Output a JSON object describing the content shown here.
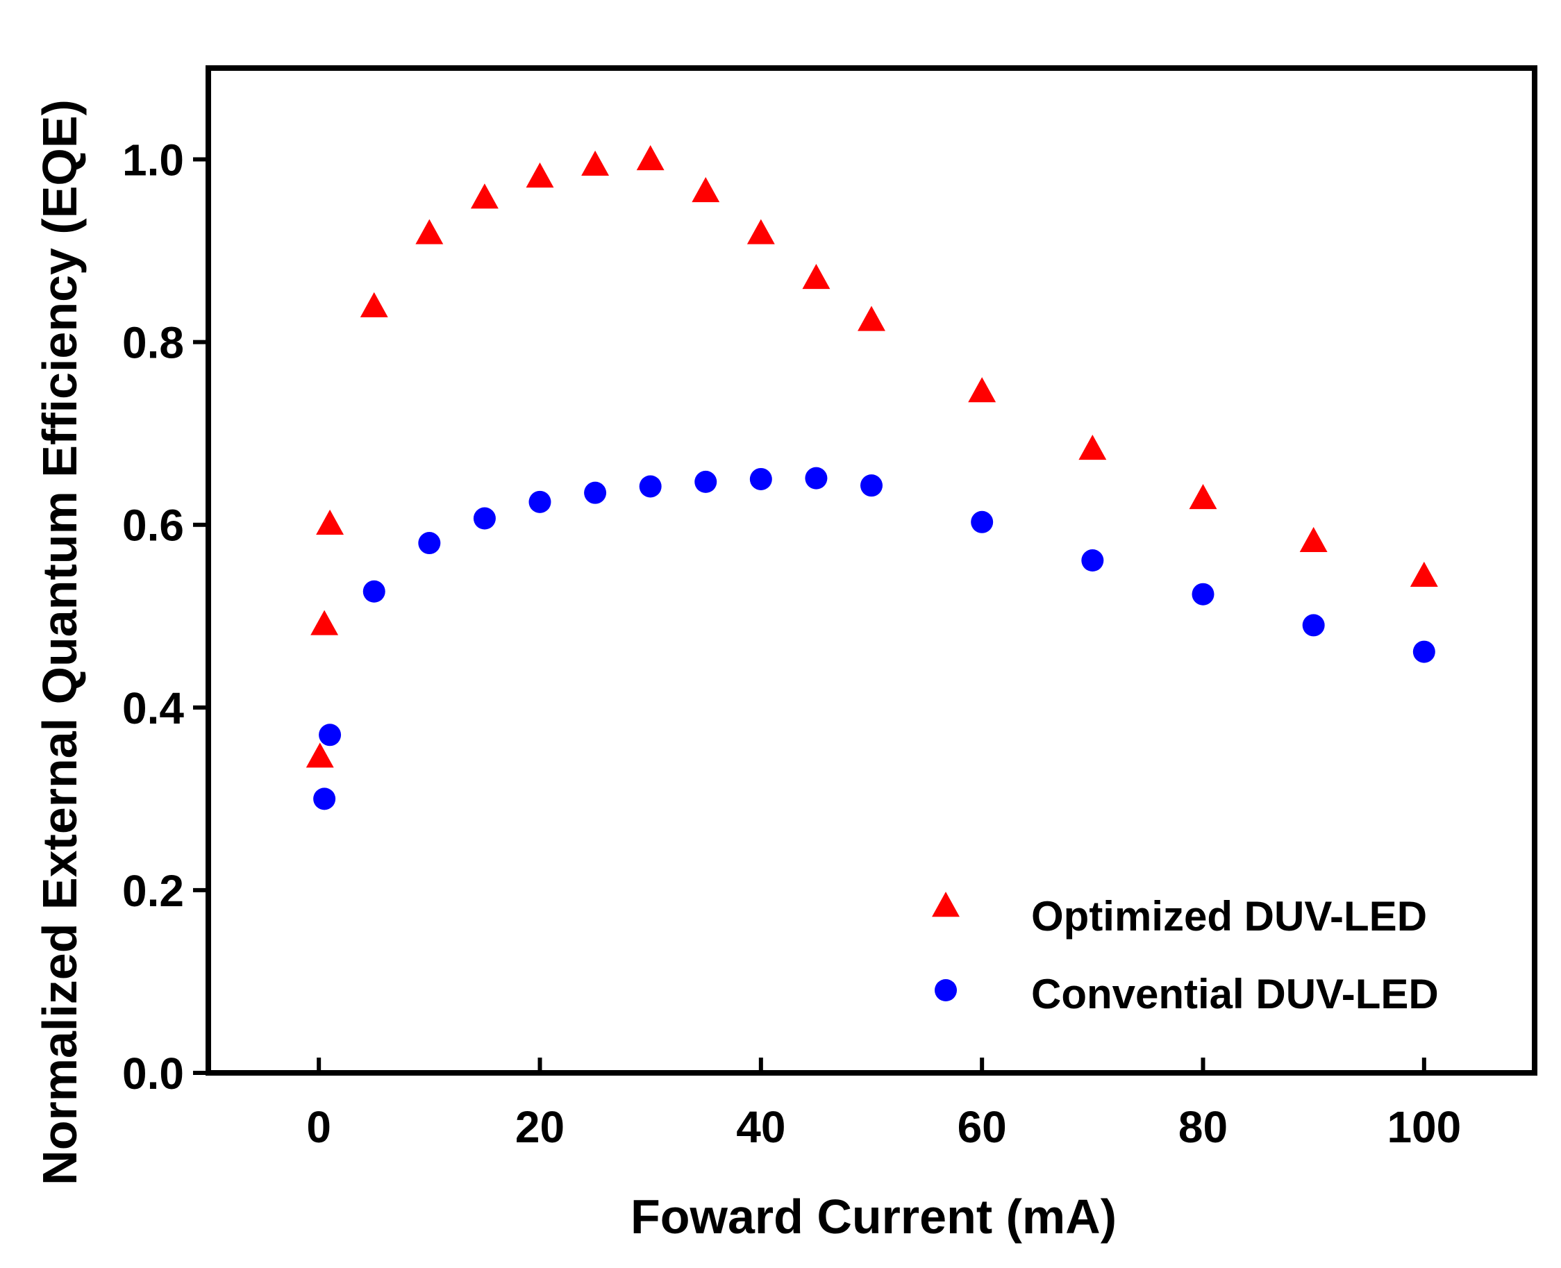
{
  "chart_data": {
    "type": "scatter",
    "title": "",
    "xlabel": "Foward Current (mA)",
    "ylabel": "Normalized External Quantum Efficiency (EQE)",
    "xlim": [
      -10,
      110
    ],
    "ylim": [
      0,
      1.1
    ],
    "xticks": [
      0,
      20,
      40,
      60,
      80,
      100
    ],
    "xtick_labels": [
      "0",
      "20",
      "40",
      "60",
      "80",
      "100"
    ],
    "yticks": [
      0,
      0.2,
      0.4,
      0.6,
      0.8,
      1.0
    ],
    "ytick_labels": [
      "0.0",
      "0.2",
      "0.4",
      "0.6",
      "0.8",
      "1.0"
    ],
    "grid": false,
    "legend_position": "bottom-right",
    "series": [
      {
        "name": "Optimized  DUV-LED",
        "marker": "triangle",
        "color": "#ff0000",
        "x": [
          0.1,
          0.5,
          1,
          5,
          10,
          15,
          20,
          25,
          30,
          35,
          40,
          45,
          50,
          60,
          70,
          80,
          90,
          100
        ],
        "y": [
          0.345,
          0.49,
          0.6,
          0.838,
          0.918,
          0.957,
          0.98,
          0.993,
          0.999,
          0.964,
          0.918,
          0.869,
          0.823,
          0.745,
          0.682,
          0.628,
          0.581,
          0.543
        ]
      },
      {
        "name": "Convential DUV-LED",
        "marker": "circle",
        "color": "#0000ff",
        "x": [
          0.5,
          1,
          5,
          10,
          15,
          20,
          25,
          30,
          35,
          40,
          45,
          50,
          60,
          70,
          80,
          90,
          100
        ],
        "y": [
          0.3,
          0.37,
          0.527,
          0.58,
          0.607,
          0.625,
          0.635,
          0.642,
          0.647,
          0.65,
          0.651,
          0.643,
          0.603,
          0.561,
          0.524,
          0.49,
          0.461
        ]
      }
    ]
  }
}
